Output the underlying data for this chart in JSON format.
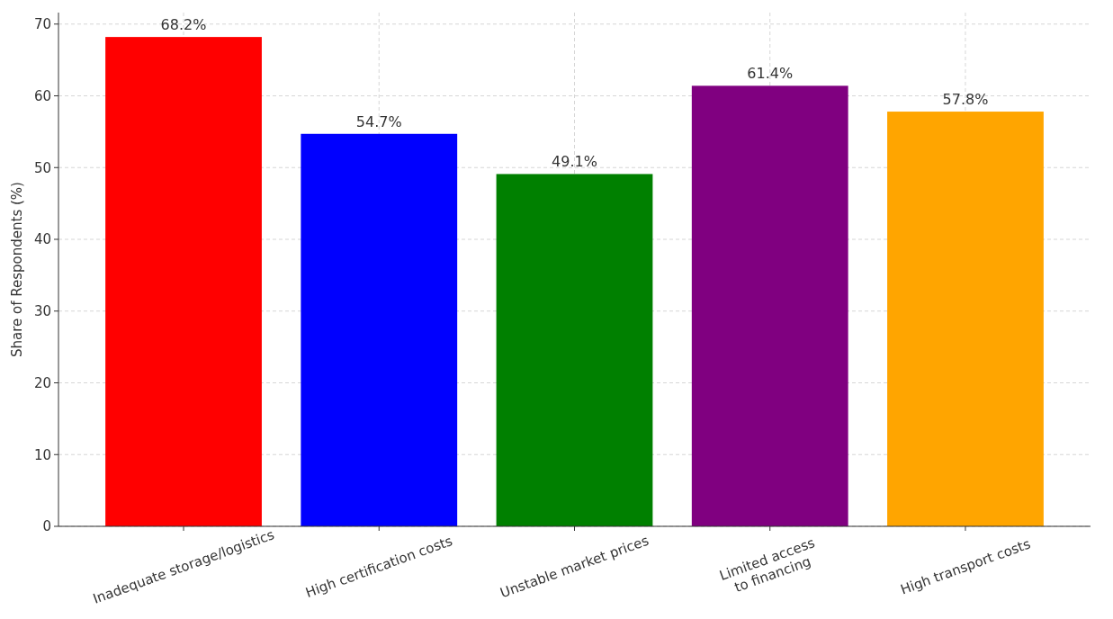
{
  "chart_data": {
    "type": "bar",
    "ylabel": "Share of Respondents (%)",
    "categories": [
      "Inadequate storage/logistics",
      "High certification costs",
      "Unstable market prices",
      "Limited access\nto financing",
      "High transport costs"
    ],
    "values": [
      68.2,
      54.7,
      49.1,
      61.4,
      57.8
    ],
    "value_labels": [
      "68.2%",
      "54.7%",
      "49.1%",
      "61.4%",
      "57.8%"
    ],
    "colors": [
      "#ff0000",
      "#0000ff",
      "#008000",
      "#800080",
      "#ffa500"
    ],
    "ylim": [
      0,
      71.6
    ],
    "yticks": [
      0,
      10,
      20,
      30,
      40,
      50,
      60,
      70
    ],
    "grid": true
  }
}
